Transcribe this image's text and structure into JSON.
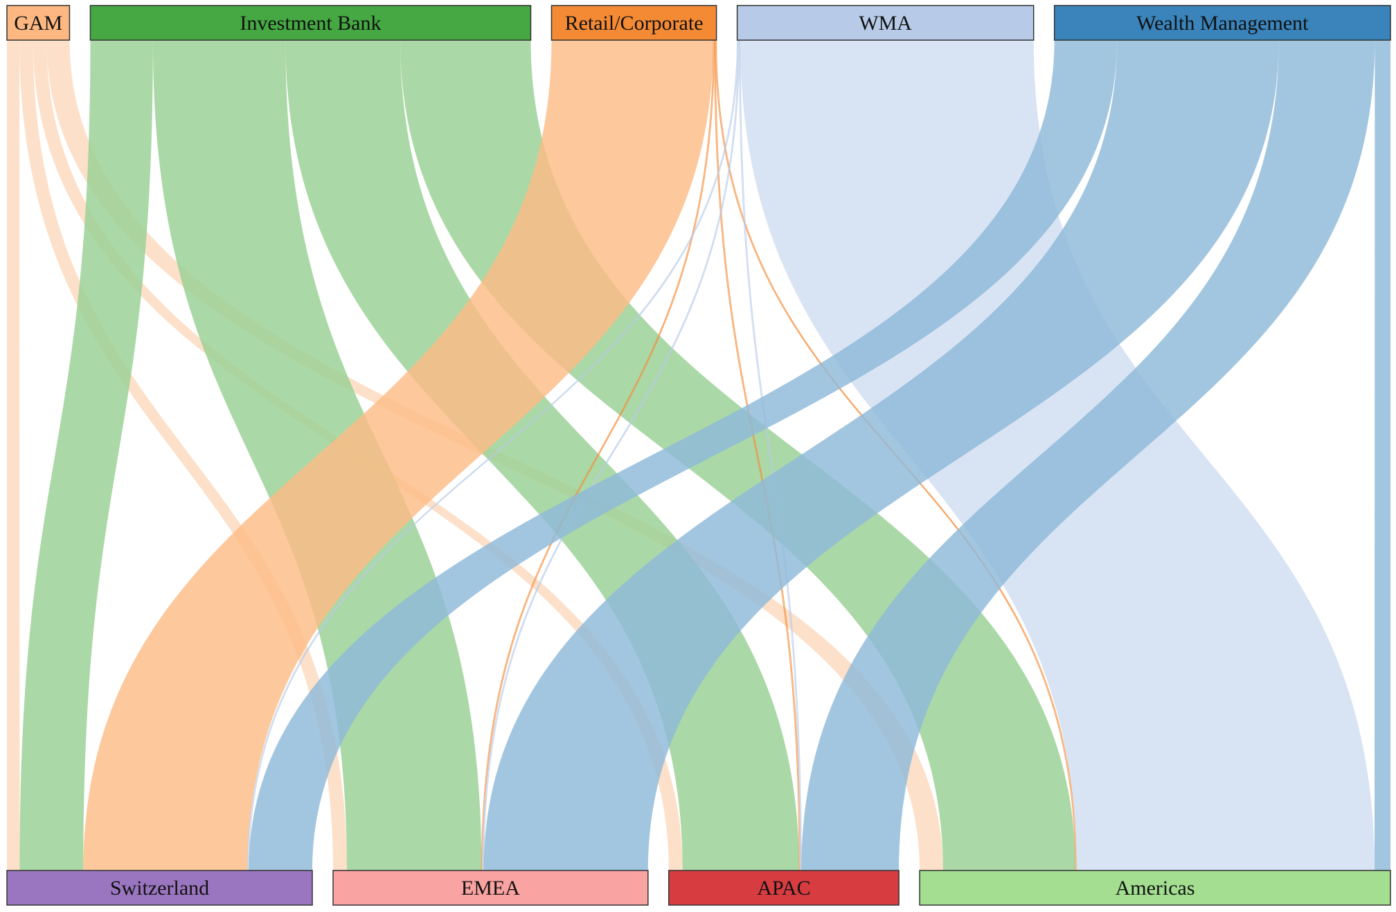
{
  "chart_data": {
    "type": "sankey",
    "title": "",
    "sources": [
      {
        "id": "gam",
        "label": "GAM",
        "color": "#fdb882"
      },
      {
        "id": "ib",
        "label": "Investment Bank",
        "color": "#45a843"
      },
      {
        "id": "rc",
        "label": "Retail/Corporate",
        "color": "#f58a35"
      },
      {
        "id": "wma",
        "label": "WMA",
        "color": "#b7cbe8"
      },
      {
        "id": "wm",
        "label": "Wealth Management",
        "color": "#3a84bb"
      }
    ],
    "targets": [
      {
        "id": "ch",
        "label": "Switzerland",
        "color": "#9b76c0"
      },
      {
        "id": "emea",
        "label": "EMEA",
        "color": "#f9a3a2"
      },
      {
        "id": "apac",
        "label": "APAC",
        "color": "#d63c40"
      },
      {
        "id": "am",
        "label": "Americas",
        "color": "#a3de91"
      }
    ],
    "link_colors": {
      "gam": "#fdd9bd",
      "ib": "#98cf94",
      "rc": "#fdbc86",
      "wma": "#d6e2f2",
      "wm": "#8fb9d9"
    },
    "flows": [
      {
        "source": "gam",
        "target": "ch",
        "value": 12
      },
      {
        "source": "gam",
        "target": "emea",
        "value": 13
      },
      {
        "source": "gam",
        "target": "apac",
        "value": 13
      },
      {
        "source": "gam",
        "target": "am",
        "value": 22
      },
      {
        "source": "ib",
        "target": "ch",
        "value": 60
      },
      {
        "source": "ib",
        "target": "emea",
        "value": 127
      },
      {
        "source": "ib",
        "target": "apac",
        "value": 110
      },
      {
        "source": "ib",
        "target": "am",
        "value": 125
      },
      {
        "source": "rc",
        "target": "ch",
        "value": 155
      },
      {
        "source": "rc",
        "target": "emea",
        "value": 1
      },
      {
        "source": "rc",
        "target": "apac",
        "value": 1
      },
      {
        "source": "rc",
        "target": "am",
        "value": 1
      },
      {
        "source": "wma",
        "target": "ch",
        "value": 1
      },
      {
        "source": "wma",
        "target": "emea",
        "value": 1
      },
      {
        "source": "wma",
        "target": "apac",
        "value": 1
      },
      {
        "source": "wma",
        "target": "am",
        "value": 281
      },
      {
        "source": "wm",
        "target": "ch",
        "value": 60
      },
      {
        "source": "wm",
        "target": "emea",
        "value": 155
      },
      {
        "source": "wm",
        "target": "apac",
        "value": 92
      },
      {
        "source": "wm",
        "target": "am",
        "value": 15
      }
    ]
  }
}
